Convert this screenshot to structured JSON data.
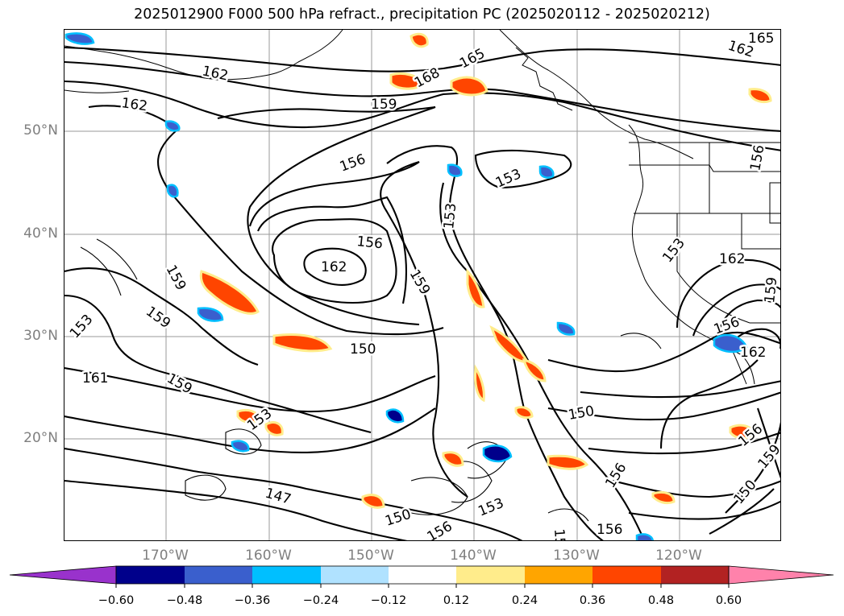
{
  "title": "2025012900 F000 500 hPa refract., precipitation PC (2025020112 - 2025020212)",
  "lat_labels": [
    "50°N",
    "40°N",
    "30°N",
    "20°N"
  ],
  "lon_labels": [
    "170°W",
    "160°W",
    "150°W",
    "140°W",
    "130°W",
    "120°W"
  ],
  "contour_labels": [
    "165",
    "162",
    "168",
    "165",
    "162",
    "162",
    "159",
    "156",
    "153",
    "156",
    "153",
    "156",
    "162",
    "159",
    "159",
    "153",
    "159",
    "153",
    "162",
    "156",
    "159",
    "150",
    "162",
    "161",
    "159",
    "153",
    "150",
    "156",
    "147",
    "150",
    "156",
    "153",
    "156",
    "156",
    "159",
    "150",
    "156"
  ],
  "colorbar": {
    "ticks": [
      "−0.60",
      "−0.48",
      "−0.36",
      "−0.24",
      "−0.12",
      "0.12",
      "0.24",
      "0.36",
      "0.48",
      "0.60"
    ],
    "colors": [
      "#9932cc",
      "#00008b",
      "#3a5fcd",
      "#00bfff",
      "#b0e2ff",
      "#ffffff",
      "#ffec8b",
      "#ffa500",
      "#ff4500",
      "#b22222",
      "#ff82ab"
    ]
  }
}
